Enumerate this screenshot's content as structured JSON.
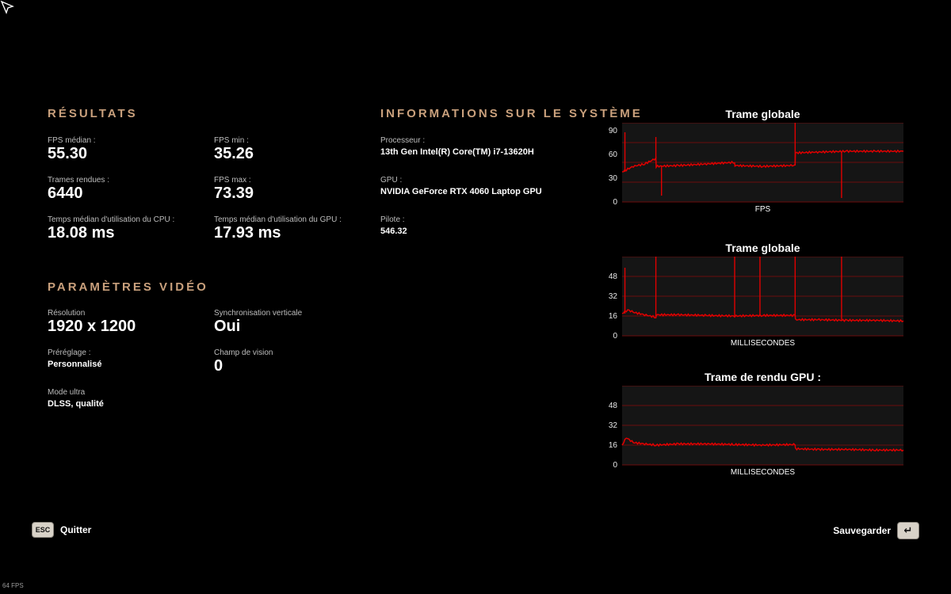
{
  "results": {
    "title": "RÉSULTATS",
    "items": [
      {
        "label": "FPS médian :",
        "value": "55.30"
      },
      {
        "label": "FPS min :",
        "value": "35.26"
      },
      {
        "label": "Trames rendues :",
        "value": "6440"
      },
      {
        "label": "FPS max :",
        "value": "73.39"
      },
      {
        "label": "Temps médian d'utilisation du CPU :",
        "value": "18.08 ms"
      },
      {
        "label": "Temps médian d'utilisation du GPU :",
        "value": "17.93 ms"
      }
    ]
  },
  "video": {
    "title": "PARAMÈTRES VIDÉO",
    "items": [
      {
        "label": "Résolution",
        "value": "1920 x 1200"
      },
      {
        "label": "Synchronisation verticale",
        "value": "Oui"
      },
      {
        "label": "Préréglage :",
        "value": "Personnalisé"
      },
      {
        "label": "Champ de vision",
        "value": "0"
      },
      {
        "label": "Mode ultra",
        "value": "DLSS, qualité"
      }
    ]
  },
  "system": {
    "title": "INFORMATIONS SUR LE SYSTÈME",
    "items": [
      {
        "label": "Processeur :",
        "value": "13th Gen Intel(R) Core(TM) i7-13620H"
      },
      {
        "label": "GPU :",
        "value": "NVIDIA GeForce RTX 4060 Laptop GPU"
      },
      {
        "label": "Pilote :",
        "value": "546.32"
      }
    ]
  },
  "chart_data": [
    {
      "type": "line",
      "title": "Trame globale",
      "xlabel": "FPS",
      "yticks": [
        0,
        30,
        60,
        90
      ],
      "ylim": [
        0,
        100
      ],
      "series_color": "#e00000",
      "grid": true,
      "x_range": [
        0,
        100
      ],
      "segments": [
        {
          "x": [
            0,
            4,
            8,
            12,
            12.1,
            20,
            30,
            40,
            40.1,
            50,
            60,
            61.5,
            61.6,
            70,
            80,
            90,
            100
          ],
          "y": [
            38,
            45,
            48,
            55,
            45,
            46,
            48,
            50,
            46,
            45,
            46,
            46,
            62,
            63,
            64,
            64,
            64
          ]
        }
      ],
      "spikes": [
        {
          "x": 1,
          "y": 88
        },
        {
          "x": 12,
          "y": 82
        },
        {
          "x": 14,
          "y": 8
        },
        {
          "x": 61.5,
          "y": 100
        },
        {
          "x": 78,
          "y": 5
        }
      ]
    },
    {
      "type": "line",
      "title": "Trame globale",
      "xlabel": "MILLISECONDES",
      "yticks": [
        0,
        16,
        32,
        48
      ],
      "ylim": [
        0,
        64
      ],
      "series_color": "#e00000",
      "grid": true,
      "x_range": [
        0,
        100
      ],
      "segments": [
        {
          "x": [
            0,
            2,
            4,
            8,
            12,
            12.1,
            20,
            30,
            40,
            50,
            61.5,
            61.6,
            70,
            80,
            90,
            100
          ],
          "y": [
            18,
            21,
            19,
            17,
            15,
            17,
            17,
            16.5,
            16,
            16.5,
            16.5,
            13,
            13,
            12.5,
            12.5,
            12
          ]
        }
      ],
      "spikes": [
        {
          "x": 1,
          "y": 55
        },
        {
          "x": 12,
          "y": 68
        },
        {
          "x": 40,
          "y": 64
        },
        {
          "x": 49,
          "y": 64
        },
        {
          "x": 61.5,
          "y": 64
        },
        {
          "x": 78,
          "y": 68
        }
      ]
    },
    {
      "type": "line",
      "title": "Trame de rendu GPU :",
      "xlabel": "MILLISECONDES",
      "yticks": [
        0,
        16,
        32,
        48
      ],
      "ylim": [
        0,
        64
      ],
      "series_color": "#e00000",
      "grid": true,
      "x_range": [
        0,
        100
      ],
      "segments": [
        {
          "x": [
            0,
            1.5,
            4,
            8,
            12,
            20,
            30,
            40,
            50,
            61.5,
            61.6,
            70,
            80,
            90,
            100
          ],
          "y": [
            16,
            22,
            18,
            17,
            16,
            17,
            17,
            16.5,
            16,
            16.5,
            13,
            12.5,
            12.5,
            12,
            12
          ]
        }
      ],
      "spikes": []
    }
  ],
  "footer": {
    "quit_key": "ESC",
    "quit_label": "Quitter",
    "save_label": "Sauvegarder",
    "save_key": "↵"
  },
  "fps_counter": "64 FPS"
}
